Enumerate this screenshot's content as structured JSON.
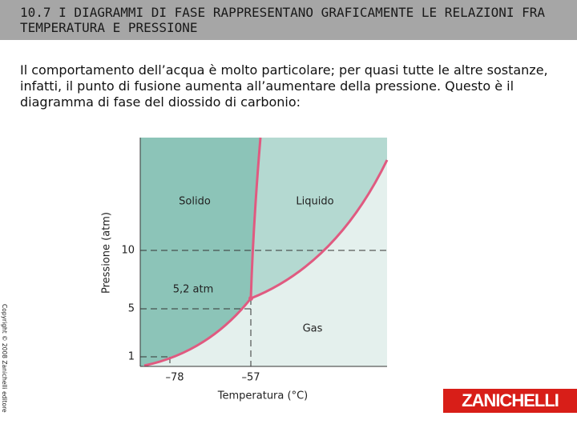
{
  "header": {
    "title": "10.7 I DIAGRAMMI DI FASE RAPPRESENTANO GRAFICAMENTE LE RELAZIONI FRA TEMPERATURA E PRESSIONE"
  },
  "body": {
    "text": "Il comportamento dell’acqua è molto particolare; per quasi tutte le altre sostanze, infatti, il punto di fusione aumenta all’aumentare della pressione. Questo è il diagramma di fase del diossido di carbonio:"
  },
  "diagram": {
    "y_axis_label": "Pressione (atm)",
    "x_axis_label": "Temperatura (°C)",
    "y_ticks": [
      "10",
      "5",
      "1"
    ],
    "x_ticks": [
      "–78",
      "–57"
    ],
    "regions": [
      "Solido",
      "Liquido",
      "Gas"
    ],
    "annotation": "5,2 atm"
  },
  "copyright": "Copyright © 2008 Zanichelli editore",
  "logo": "ZANICHELLI"
}
